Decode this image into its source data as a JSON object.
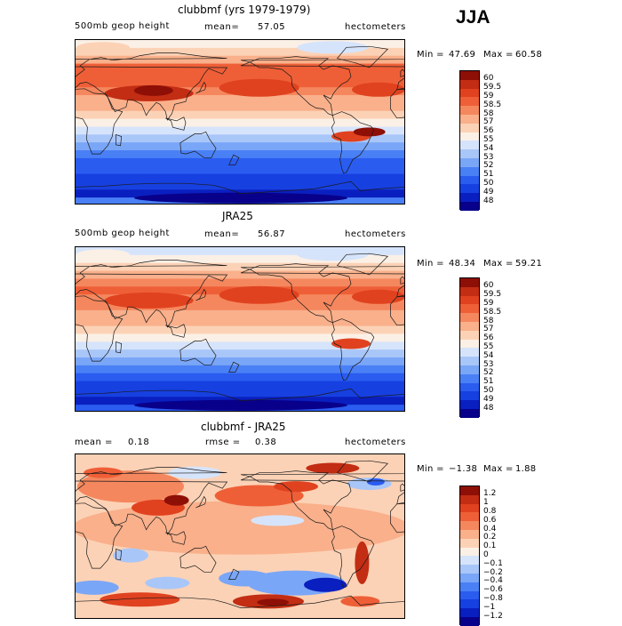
{
  "season": "JJA",
  "panels": [
    {
      "title": "clubbmf (yrs 1979-1979)",
      "left_label": "500mb geop height",
      "mean_label": "mean=",
      "mean_value": "57.05",
      "units": "hectometers",
      "min_label": "Min =",
      "min_value": "47.69",
      "max_label": "Max =",
      "max_value": "60.58",
      "levels": [
        "60",
        "59.5",
        "59",
        "58.5",
        "58",
        "57",
        "56",
        "55",
        "54",
        "53",
        "52",
        "51",
        "50",
        "49",
        "48"
      ]
    },
    {
      "title": "JRA25",
      "left_label": "500mb geop height",
      "mean_label": "mean=",
      "mean_value": "56.87",
      "units": "hectometers",
      "min_label": "Min =",
      "min_value": "48.34",
      "max_label": "Max =",
      "max_value": "59.21",
      "levels": [
        "60",
        "59.5",
        "59",
        "58.5",
        "58",
        "57",
        "56",
        "55",
        "54",
        "53",
        "52",
        "51",
        "50",
        "49",
        "48"
      ]
    },
    {
      "title": "clubbmf - JRA25",
      "left_label": "mean =",
      "left_value": "0.18",
      "mean_label": "rmse =",
      "mean_value": "0.38",
      "units": "hectometers",
      "min_label": "Min =",
      "min_value": "−1.38",
      "max_label": "Max =",
      "max_value": "1.88",
      "levels": [
        "1.2",
        "1",
        "0.8",
        "0.6",
        "0.4",
        "0.2",
        "0.1",
        "0",
        "−0.1",
        "−0.2",
        "−0.4",
        "−0.6",
        "−0.8",
        "−1",
        "−1.2"
      ]
    }
  ],
  "chart_data": [
    {
      "type": "heatmap",
      "title": "clubbmf (yrs 1979-1979)",
      "variable": "500mb geop height",
      "units": "hectometers",
      "mean": 57.05,
      "min": 47.69,
      "max": 60.58,
      "levels": [
        48,
        49,
        50,
        51,
        52,
        53,
        54,
        55,
        56,
        57,
        58,
        58.5,
        59,
        59.5,
        60
      ],
      "bands_north_to_south": [
        55.5,
        56.5,
        57.5,
        58.5,
        58.8,
        58.6,
        58.3,
        57.8,
        57.2,
        56.2,
        55.2,
        54.2,
        53.2,
        52.2,
        51.2,
        50.5,
        50.0,
        49.5,
        49.0,
        48.7,
        51.0
      ]
    },
    {
      "type": "heatmap",
      "title": "JRA25",
      "variable": "500mb geop height",
      "units": "hectometers",
      "mean": 56.87,
      "min": 48.34,
      "max": 59.21,
      "levels": [
        48,
        49,
        50,
        51,
        52,
        53,
        54,
        55,
        56,
        57,
        58,
        58.5,
        59,
        59.5,
        60
      ],
      "bands_north_to_south": [
        54.5,
        55.5,
        56.5,
        57.5,
        58.2,
        58.5,
        58.3,
        58.2,
        57.8,
        57.2,
        56.2,
        55.2,
        54.2,
        53.2,
        52.2,
        51.2,
        50.2,
        49.5,
        49.0,
        48.6,
        50.0
      ]
    },
    {
      "type": "heatmap",
      "title": "clubbmf - JRA25",
      "units": "hectometers",
      "mean": 0.18,
      "rmse": 0.38,
      "min": -1.38,
      "max": 1.88,
      "levels": [
        -1.2,
        -1,
        -0.8,
        -0.6,
        -0.4,
        -0.2,
        -0.1,
        0,
        0.1,
        0.2,
        0.4,
        0.6,
        0.8,
        1,
        1.2
      ]
    }
  ]
}
